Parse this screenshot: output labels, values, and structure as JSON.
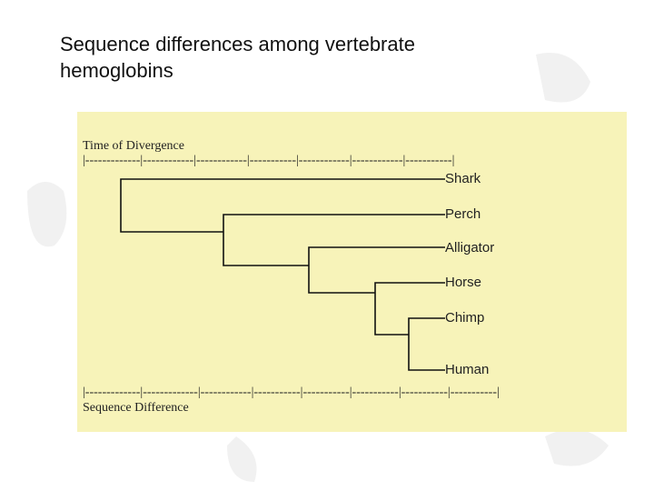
{
  "title": "Sequence differences among vertebrate hemoglobins",
  "tree": {
    "top_label": "Time of Divergence",
    "top_scale": "|-------------|------------|------------|-----------|------------|------------|-----------|",
    "leaves": [
      "Shark",
      "Perch",
      "Alligator",
      "Horse",
      "Chimp",
      "Human"
    ],
    "bottom_scale": "|-------------|-------------|------------|-----------|-----------|-----------|-----------|-----------|",
    "bottom_label": "Sequence Difference"
  }
}
